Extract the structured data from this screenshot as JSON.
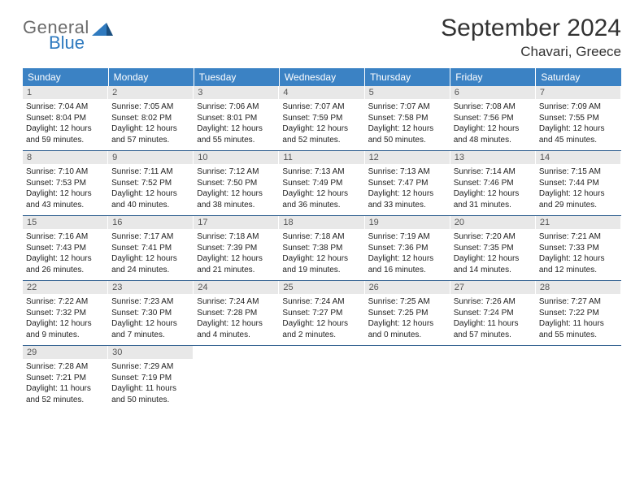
{
  "logo": {
    "text1": "General",
    "text2": "Blue"
  },
  "title": "September 2024",
  "location": "Chavari, Greece",
  "weekdays": [
    "Sunday",
    "Monday",
    "Tuesday",
    "Wednesday",
    "Thursday",
    "Friday",
    "Saturday"
  ],
  "colors": {
    "header_bg": "#3b82c4",
    "header_text": "#ffffff",
    "daynum_bg": "#e8e8e8",
    "border": "#2f5f8f",
    "logo_gray": "#6b6b6b",
    "logo_blue": "#2f7abf"
  },
  "days": [
    {
      "n": "1",
      "sunrise": "7:04 AM",
      "sunset": "8:04 PM",
      "daylight": "12 hours and 59 minutes."
    },
    {
      "n": "2",
      "sunrise": "7:05 AM",
      "sunset": "8:02 PM",
      "daylight": "12 hours and 57 minutes."
    },
    {
      "n": "3",
      "sunrise": "7:06 AM",
      "sunset": "8:01 PM",
      "daylight": "12 hours and 55 minutes."
    },
    {
      "n": "4",
      "sunrise": "7:07 AM",
      "sunset": "7:59 PM",
      "daylight": "12 hours and 52 minutes."
    },
    {
      "n": "5",
      "sunrise": "7:07 AM",
      "sunset": "7:58 PM",
      "daylight": "12 hours and 50 minutes."
    },
    {
      "n": "6",
      "sunrise": "7:08 AM",
      "sunset": "7:56 PM",
      "daylight": "12 hours and 48 minutes."
    },
    {
      "n": "7",
      "sunrise": "7:09 AM",
      "sunset": "7:55 PM",
      "daylight": "12 hours and 45 minutes."
    },
    {
      "n": "8",
      "sunrise": "7:10 AM",
      "sunset": "7:53 PM",
      "daylight": "12 hours and 43 minutes."
    },
    {
      "n": "9",
      "sunrise": "7:11 AM",
      "sunset": "7:52 PM",
      "daylight": "12 hours and 40 minutes."
    },
    {
      "n": "10",
      "sunrise": "7:12 AM",
      "sunset": "7:50 PM",
      "daylight": "12 hours and 38 minutes."
    },
    {
      "n": "11",
      "sunrise": "7:13 AM",
      "sunset": "7:49 PM",
      "daylight": "12 hours and 36 minutes."
    },
    {
      "n": "12",
      "sunrise": "7:13 AM",
      "sunset": "7:47 PM",
      "daylight": "12 hours and 33 minutes."
    },
    {
      "n": "13",
      "sunrise": "7:14 AM",
      "sunset": "7:46 PM",
      "daylight": "12 hours and 31 minutes."
    },
    {
      "n": "14",
      "sunrise": "7:15 AM",
      "sunset": "7:44 PM",
      "daylight": "12 hours and 29 minutes."
    },
    {
      "n": "15",
      "sunrise": "7:16 AM",
      "sunset": "7:43 PM",
      "daylight": "12 hours and 26 minutes."
    },
    {
      "n": "16",
      "sunrise": "7:17 AM",
      "sunset": "7:41 PM",
      "daylight": "12 hours and 24 minutes."
    },
    {
      "n": "17",
      "sunrise": "7:18 AM",
      "sunset": "7:39 PM",
      "daylight": "12 hours and 21 minutes."
    },
    {
      "n": "18",
      "sunrise": "7:18 AM",
      "sunset": "7:38 PM",
      "daylight": "12 hours and 19 minutes."
    },
    {
      "n": "19",
      "sunrise": "7:19 AM",
      "sunset": "7:36 PM",
      "daylight": "12 hours and 16 minutes."
    },
    {
      "n": "20",
      "sunrise": "7:20 AM",
      "sunset": "7:35 PM",
      "daylight": "12 hours and 14 minutes."
    },
    {
      "n": "21",
      "sunrise": "7:21 AM",
      "sunset": "7:33 PM",
      "daylight": "12 hours and 12 minutes."
    },
    {
      "n": "22",
      "sunrise": "7:22 AM",
      "sunset": "7:32 PM",
      "daylight": "12 hours and 9 minutes."
    },
    {
      "n": "23",
      "sunrise": "7:23 AM",
      "sunset": "7:30 PM",
      "daylight": "12 hours and 7 minutes."
    },
    {
      "n": "24",
      "sunrise": "7:24 AM",
      "sunset": "7:28 PM",
      "daylight": "12 hours and 4 minutes."
    },
    {
      "n": "25",
      "sunrise": "7:24 AM",
      "sunset": "7:27 PM",
      "daylight": "12 hours and 2 minutes."
    },
    {
      "n": "26",
      "sunrise": "7:25 AM",
      "sunset": "7:25 PM",
      "daylight": "12 hours and 0 minutes."
    },
    {
      "n": "27",
      "sunrise": "7:26 AM",
      "sunset": "7:24 PM",
      "daylight": "11 hours and 57 minutes."
    },
    {
      "n": "28",
      "sunrise": "7:27 AM",
      "sunset": "7:22 PM",
      "daylight": "11 hours and 55 minutes."
    },
    {
      "n": "29",
      "sunrise": "7:28 AM",
      "sunset": "7:21 PM",
      "daylight": "11 hours and 52 minutes."
    },
    {
      "n": "30",
      "sunrise": "7:29 AM",
      "sunset": "7:19 PM",
      "daylight": "11 hours and 50 minutes."
    }
  ],
  "labels": {
    "sunrise": "Sunrise:",
    "sunset": "Sunset:",
    "daylight": "Daylight:"
  },
  "layout": {
    "first_weekday_index": 0,
    "trailing_blanks": 5
  }
}
